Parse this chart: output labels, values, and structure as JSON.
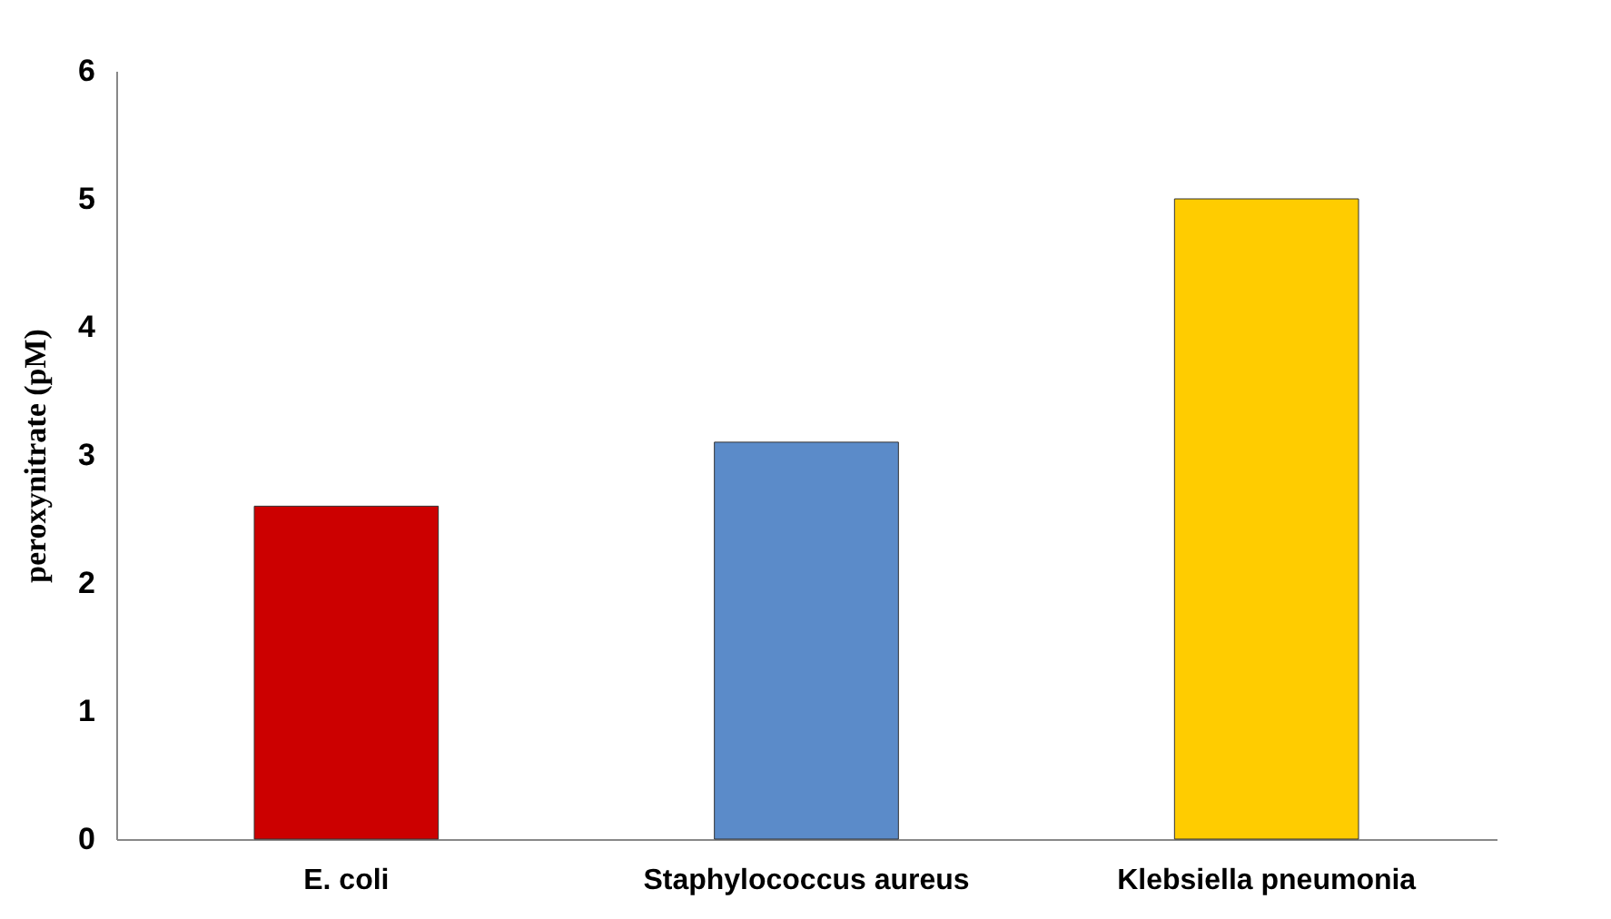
{
  "chart_data": {
    "type": "bar",
    "ylabel": "peroxynitrate (pM)",
    "categories": [
      "E. coli",
      "Staphylococcus aureus",
      "Klebsiella pneumonia"
    ],
    "values": [
      2.6,
      3.1,
      5.0
    ],
    "colors": [
      "#cc0000",
      "#5b8bc9",
      "#ffcc00"
    ],
    "ylim": [
      0,
      6
    ],
    "yticks": [
      0,
      1,
      2,
      3,
      4,
      5,
      6
    ],
    "grid": false
  }
}
